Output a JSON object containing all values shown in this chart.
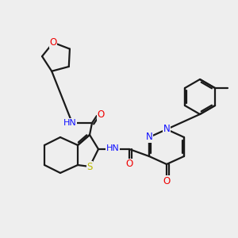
{
  "bg_color": "#eeeeee",
  "bond_color": "#1a1a1a",
  "bond_width": 1.6,
  "atom_colors": {
    "N": "#1010ff",
    "O": "#ee0000",
    "S": "#bbbb00",
    "H_label": "#5a9090"
  },
  "figsize": [
    3.0,
    3.0
  ],
  "dpi": 100,
  "xlim": [
    0,
    300
  ],
  "ylim": [
    0,
    300
  ]
}
